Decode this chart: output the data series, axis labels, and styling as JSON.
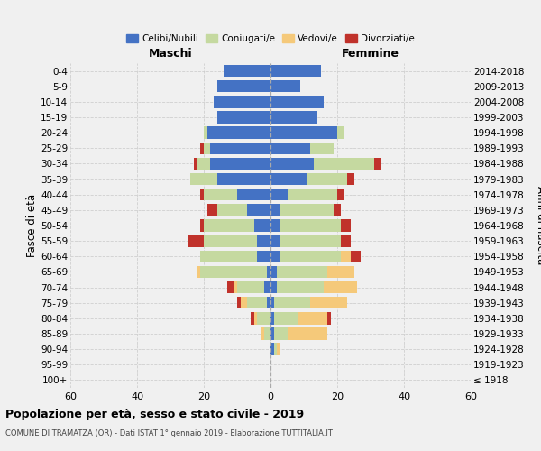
{
  "age_groups": [
    "100+",
    "95-99",
    "90-94",
    "85-89",
    "80-84",
    "75-79",
    "70-74",
    "65-69",
    "60-64",
    "55-59",
    "50-54",
    "45-49",
    "40-44",
    "35-39",
    "30-34",
    "25-29",
    "20-24",
    "15-19",
    "10-14",
    "5-9",
    "0-4"
  ],
  "birth_years": [
    "≤ 1918",
    "1919-1923",
    "1924-1928",
    "1929-1933",
    "1934-1938",
    "1939-1943",
    "1944-1948",
    "1949-1953",
    "1954-1958",
    "1959-1963",
    "1964-1968",
    "1969-1973",
    "1974-1978",
    "1979-1983",
    "1984-1988",
    "1989-1993",
    "1994-1998",
    "1999-2003",
    "2004-2008",
    "2009-2013",
    "2014-2018"
  ],
  "colors": {
    "celibi": "#4472c4",
    "coniugati": "#c5d9a0",
    "vedovi": "#f5c97a",
    "divorziati": "#c0322b"
  },
  "males": {
    "celibi": [
      0,
      0,
      0,
      0,
      0,
      1,
      2,
      1,
      4,
      4,
      5,
      7,
      10,
      16,
      18,
      18,
      19,
      16,
      17,
      16,
      14
    ],
    "coniugati": [
      0,
      0,
      0,
      2,
      4,
      6,
      8,
      20,
      17,
      16,
      15,
      9,
      10,
      8,
      4,
      2,
      1,
      0,
      0,
      0,
      0
    ],
    "vedovi": [
      0,
      0,
      0,
      1,
      1,
      2,
      1,
      1,
      0,
      0,
      0,
      0,
      0,
      0,
      0,
      0,
      0,
      0,
      0,
      0,
      0
    ],
    "divorziati": [
      0,
      0,
      0,
      0,
      1,
      1,
      2,
      0,
      0,
      5,
      1,
      3,
      1,
      0,
      1,
      1,
      0,
      0,
      0,
      0,
      0
    ]
  },
  "females": {
    "celibi": [
      0,
      0,
      1,
      1,
      1,
      1,
      2,
      2,
      3,
      3,
      3,
      3,
      5,
      11,
      13,
      12,
      20,
      14,
      16,
      9,
      15
    ],
    "coniugati": [
      0,
      0,
      1,
      4,
      7,
      11,
      14,
      15,
      18,
      18,
      18,
      16,
      15,
      12,
      18,
      7,
      2,
      0,
      0,
      0,
      0
    ],
    "vedovi": [
      0,
      0,
      1,
      12,
      9,
      11,
      10,
      8,
      3,
      0,
      0,
      0,
      0,
      0,
      0,
      0,
      0,
      0,
      0,
      0,
      0
    ],
    "divorziati": [
      0,
      0,
      0,
      0,
      1,
      0,
      0,
      0,
      3,
      3,
      3,
      2,
      2,
      2,
      2,
      0,
      0,
      0,
      0,
      0,
      0
    ]
  },
  "xlim": 60,
  "title": "Popolazione per età, sesso e stato civile - 2019",
  "subtitle": "COMUNE DI TRAMATZA (OR) - Dati ISTAT 1° gennaio 2019 - Elaborazione TUTTITALIA.IT",
  "ylabel_left": "Fasce di età",
  "ylabel_right": "Anni di nascita",
  "xlabel_left": "Maschi",
  "xlabel_right": "Femmine",
  "legend_labels": [
    "Celibi/Nubili",
    "Coniugati/e",
    "Vedovi/e",
    "Divorziati/e"
  ],
  "background_color": "#f0f0f0",
  "grid_color": "#cccccc"
}
